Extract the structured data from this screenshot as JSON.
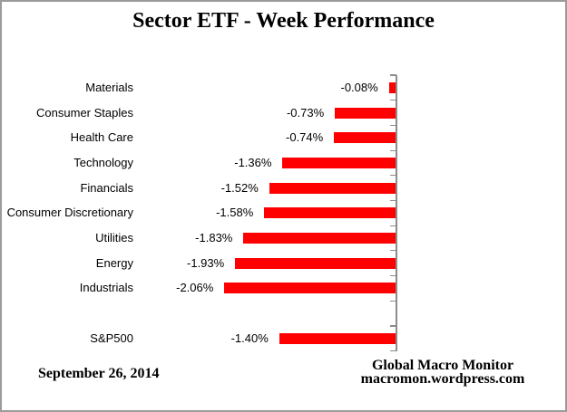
{
  "header": {
    "title": "Sector ETF - Week Performance"
  },
  "footer": {
    "date": "September 26, 2014",
    "source_line1": "Global Macro Monitor",
    "source_line2": "macromon.wordpress.com"
  },
  "chart_data": {
    "type": "bar",
    "orientation": "horizontal",
    "title": "Sector ETF - Week Performance",
    "xlabel": "",
    "ylabel": "",
    "xlim": [
      -2.5,
      0
    ],
    "grid": false,
    "legend": false,
    "bar_color": "#FF0000",
    "axis_color": "#8C8C8C",
    "series": [
      {
        "category": "Materials",
        "value": -0.08,
        "label": "-0.08%"
      },
      {
        "category": "Consumer Staples",
        "value": -0.73,
        "label": "-0.73%"
      },
      {
        "category": "Health Care",
        "value": -0.74,
        "label": "-0.74%"
      },
      {
        "category": "Technology",
        "value": -1.36,
        "label": "-1.36%"
      },
      {
        "category": "Financials",
        "value": -1.52,
        "label": "-1.52%"
      },
      {
        "category": "Consumer Discretionary",
        "value": -1.58,
        "label": "-1.58%"
      },
      {
        "category": "Utilities",
        "value": -1.83,
        "label": "-1.83%"
      },
      {
        "category": "Energy",
        "value": -1.93,
        "label": "-1.93%"
      },
      {
        "category": "Industrials",
        "value": -2.06,
        "label": "-2.06%"
      },
      {
        "category": "S&P500",
        "value": -1.4,
        "label": "-1.40%",
        "gap_before": true
      }
    ]
  }
}
